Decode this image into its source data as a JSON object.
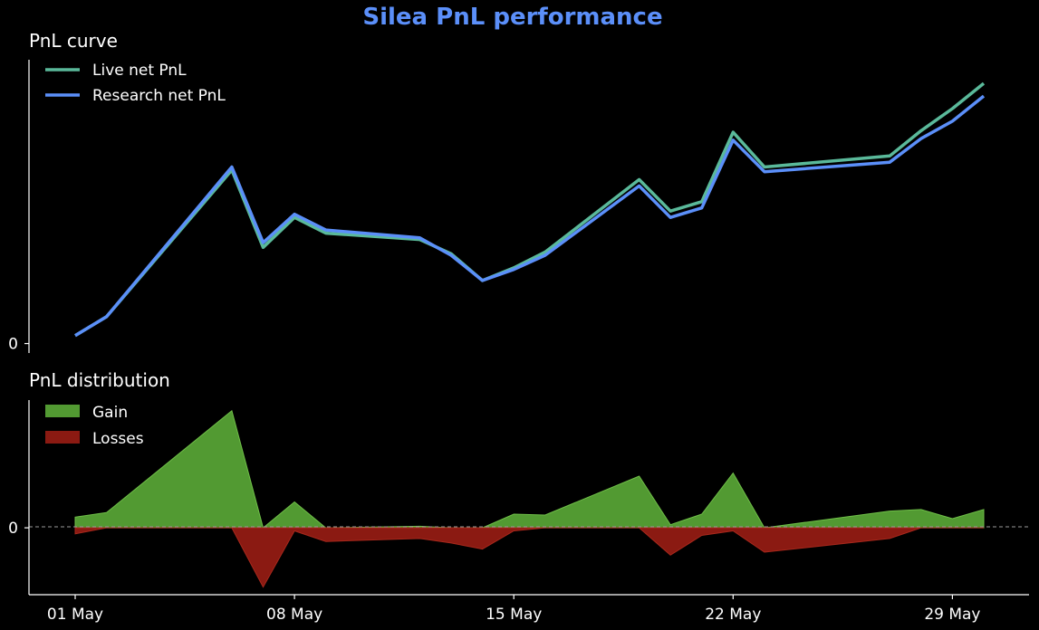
{
  "title": "Silea PnL performance",
  "colors": {
    "background": "#000000",
    "title": "#5b8ff9",
    "live": "#5ab99a",
    "research": "#5b8ff9",
    "gain": "#529a32",
    "loss": "#8b1a12",
    "axis": "#ffffff",
    "zero_line": "#9a9a9a"
  },
  "chart_data": [
    {
      "type": "line",
      "title": "PnL curve",
      "x_axis": "shared date axis, May",
      "y_ticks": [
        {
          "value": 0,
          "label": "0"
        }
      ],
      "ylim": [
        -0.3,
        9.0
      ],
      "legend": "top-left",
      "grid": false,
      "series": [
        {
          "name": "Live net PnL",
          "color": "#5ab99a",
          "points": [
            [
              "05-01",
              0.25
            ],
            [
              "05-02",
              0.85
            ],
            [
              "05-06",
              5.5
            ],
            [
              "05-07",
              3.05
            ],
            [
              "05-08",
              4.0
            ],
            [
              "05-09",
              3.5
            ],
            [
              "05-12",
              3.3
            ],
            [
              "05-13",
              2.85
            ],
            [
              "05-14",
              2.0
            ],
            [
              "05-15",
              2.4
            ],
            [
              "05-16",
              2.9
            ],
            [
              "05-19",
              5.2
            ],
            [
              "05-20",
              4.2
            ],
            [
              "05-21",
              4.5
            ],
            [
              "05-22",
              6.7
            ],
            [
              "05-23",
              5.6
            ],
            [
              "05-27",
              5.95
            ],
            [
              "05-28",
              6.75
            ],
            [
              "05-29",
              7.45
            ],
            [
              "05-30",
              8.25
            ]
          ]
        },
        {
          "name": "Research net PnL",
          "color": "#5b8ff9",
          "points": [
            [
              "05-01",
              0.25
            ],
            [
              "05-02",
              0.85
            ],
            [
              "05-06",
              5.6
            ],
            [
              "05-07",
              3.2
            ],
            [
              "05-08",
              4.1
            ],
            [
              "05-09",
              3.6
            ],
            [
              "05-12",
              3.35
            ],
            [
              "05-13",
              2.8
            ],
            [
              "05-14",
              2.0
            ],
            [
              "05-15",
              2.35
            ],
            [
              "05-16",
              2.8
            ],
            [
              "05-19",
              5.0
            ],
            [
              "05-20",
              4.0
            ],
            [
              "05-21",
              4.3
            ],
            [
              "05-22",
              6.45
            ],
            [
              "05-23",
              5.45
            ],
            [
              "05-27",
              5.75
            ],
            [
              "05-28",
              6.5
            ],
            [
              "05-29",
              7.05
            ],
            [
              "05-30",
              7.85
            ]
          ]
        }
      ]
    },
    {
      "type": "area",
      "title": "PnL distribution",
      "x_ticks": [
        "01 May",
        "08 May",
        "15 May",
        "22 May",
        "29 May"
      ],
      "x_tick_dates": [
        "05-01",
        "05-08",
        "05-15",
        "05-22",
        "05-29"
      ],
      "y_ticks": [
        {
          "value": 0,
          "label": "0"
        }
      ],
      "ylim": [
        -2.2,
        4.2
      ],
      "zero_line": "dashed",
      "legend": "top-left",
      "grid": false,
      "series": [
        {
          "name": "Gain",
          "color": "#529a32",
          "points": [
            [
              "05-01",
              0.35
            ],
            [
              "05-02",
              0.5
            ],
            [
              "05-06",
              3.85
            ],
            [
              "05-07",
              0.0
            ],
            [
              "05-08",
              0.85
            ],
            [
              "05-09",
              0.0
            ],
            [
              "05-12",
              0.05
            ],
            [
              "05-13",
              0.0
            ],
            [
              "05-14",
              0.0
            ],
            [
              "05-15",
              0.45
            ],
            [
              "05-16",
              0.42
            ],
            [
              "05-19",
              1.7
            ],
            [
              "05-20",
              0.1
            ],
            [
              "05-21",
              0.45
            ],
            [
              "05-22",
              1.8
            ],
            [
              "05-23",
              0.0
            ],
            [
              "05-27",
              0.55
            ],
            [
              "05-28",
              0.6
            ],
            [
              "05-29",
              0.3
            ],
            [
              "05-30",
              0.6
            ]
          ]
        },
        {
          "name": "Losses",
          "color": "#8b1a12",
          "points": [
            [
              "05-01",
              -0.2
            ],
            [
              "05-02",
              0.0
            ],
            [
              "05-06",
              0.0
            ],
            [
              "05-07",
              -1.95
            ],
            [
              "05-08",
              -0.1
            ],
            [
              "05-09",
              -0.45
            ],
            [
              "05-12",
              -0.35
            ],
            [
              "05-13",
              -0.5
            ],
            [
              "05-14",
              -0.7
            ],
            [
              "05-15",
              -0.1
            ],
            [
              "05-16",
              0.0
            ],
            [
              "05-19",
              0.0
            ],
            [
              "05-20",
              -0.9
            ],
            [
              "05-21",
              -0.25
            ],
            [
              "05-22",
              -0.1
            ],
            [
              "05-23",
              -0.8
            ],
            [
              "05-27",
              -0.35
            ],
            [
              "05-28",
              0.0
            ],
            [
              "05-29",
              0.0
            ],
            [
              "05-30",
              0.0
            ]
          ]
        }
      ]
    }
  ]
}
